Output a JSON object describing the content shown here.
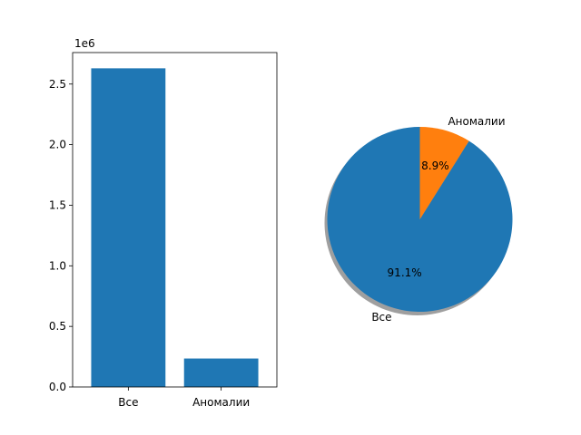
{
  "colors": {
    "series_1": "#1f77b4",
    "series_2": "#ff7f0e",
    "axis": "#000000",
    "shadow": "#7f7f7f"
  },
  "chart_data": [
    {
      "type": "bar",
      "categories": [
        "Все",
        "Аномалии"
      ],
      "values": [
        2630000,
        235000
      ],
      "ylim": [
        0,
        2760000
      ],
      "yticks": [
        0.0,
        0.5,
        1.0,
        1.5,
        2.0,
        2.5
      ],
      "ytick_labels": [
        "0.0",
        "0.5",
        "1.0",
        "1.5",
        "2.0",
        "2.5"
      ],
      "ytick_scale": 1000000,
      "offset_label": "1e6",
      "grid": false
    },
    {
      "type": "pie",
      "labels": [
        "Все",
        "Аномалии"
      ],
      "values": [
        91.1,
        8.9
      ],
      "autopct_labels": [
        "91.1%",
        "8.9%"
      ],
      "shadow": true,
      "start_angle": 90
    }
  ]
}
